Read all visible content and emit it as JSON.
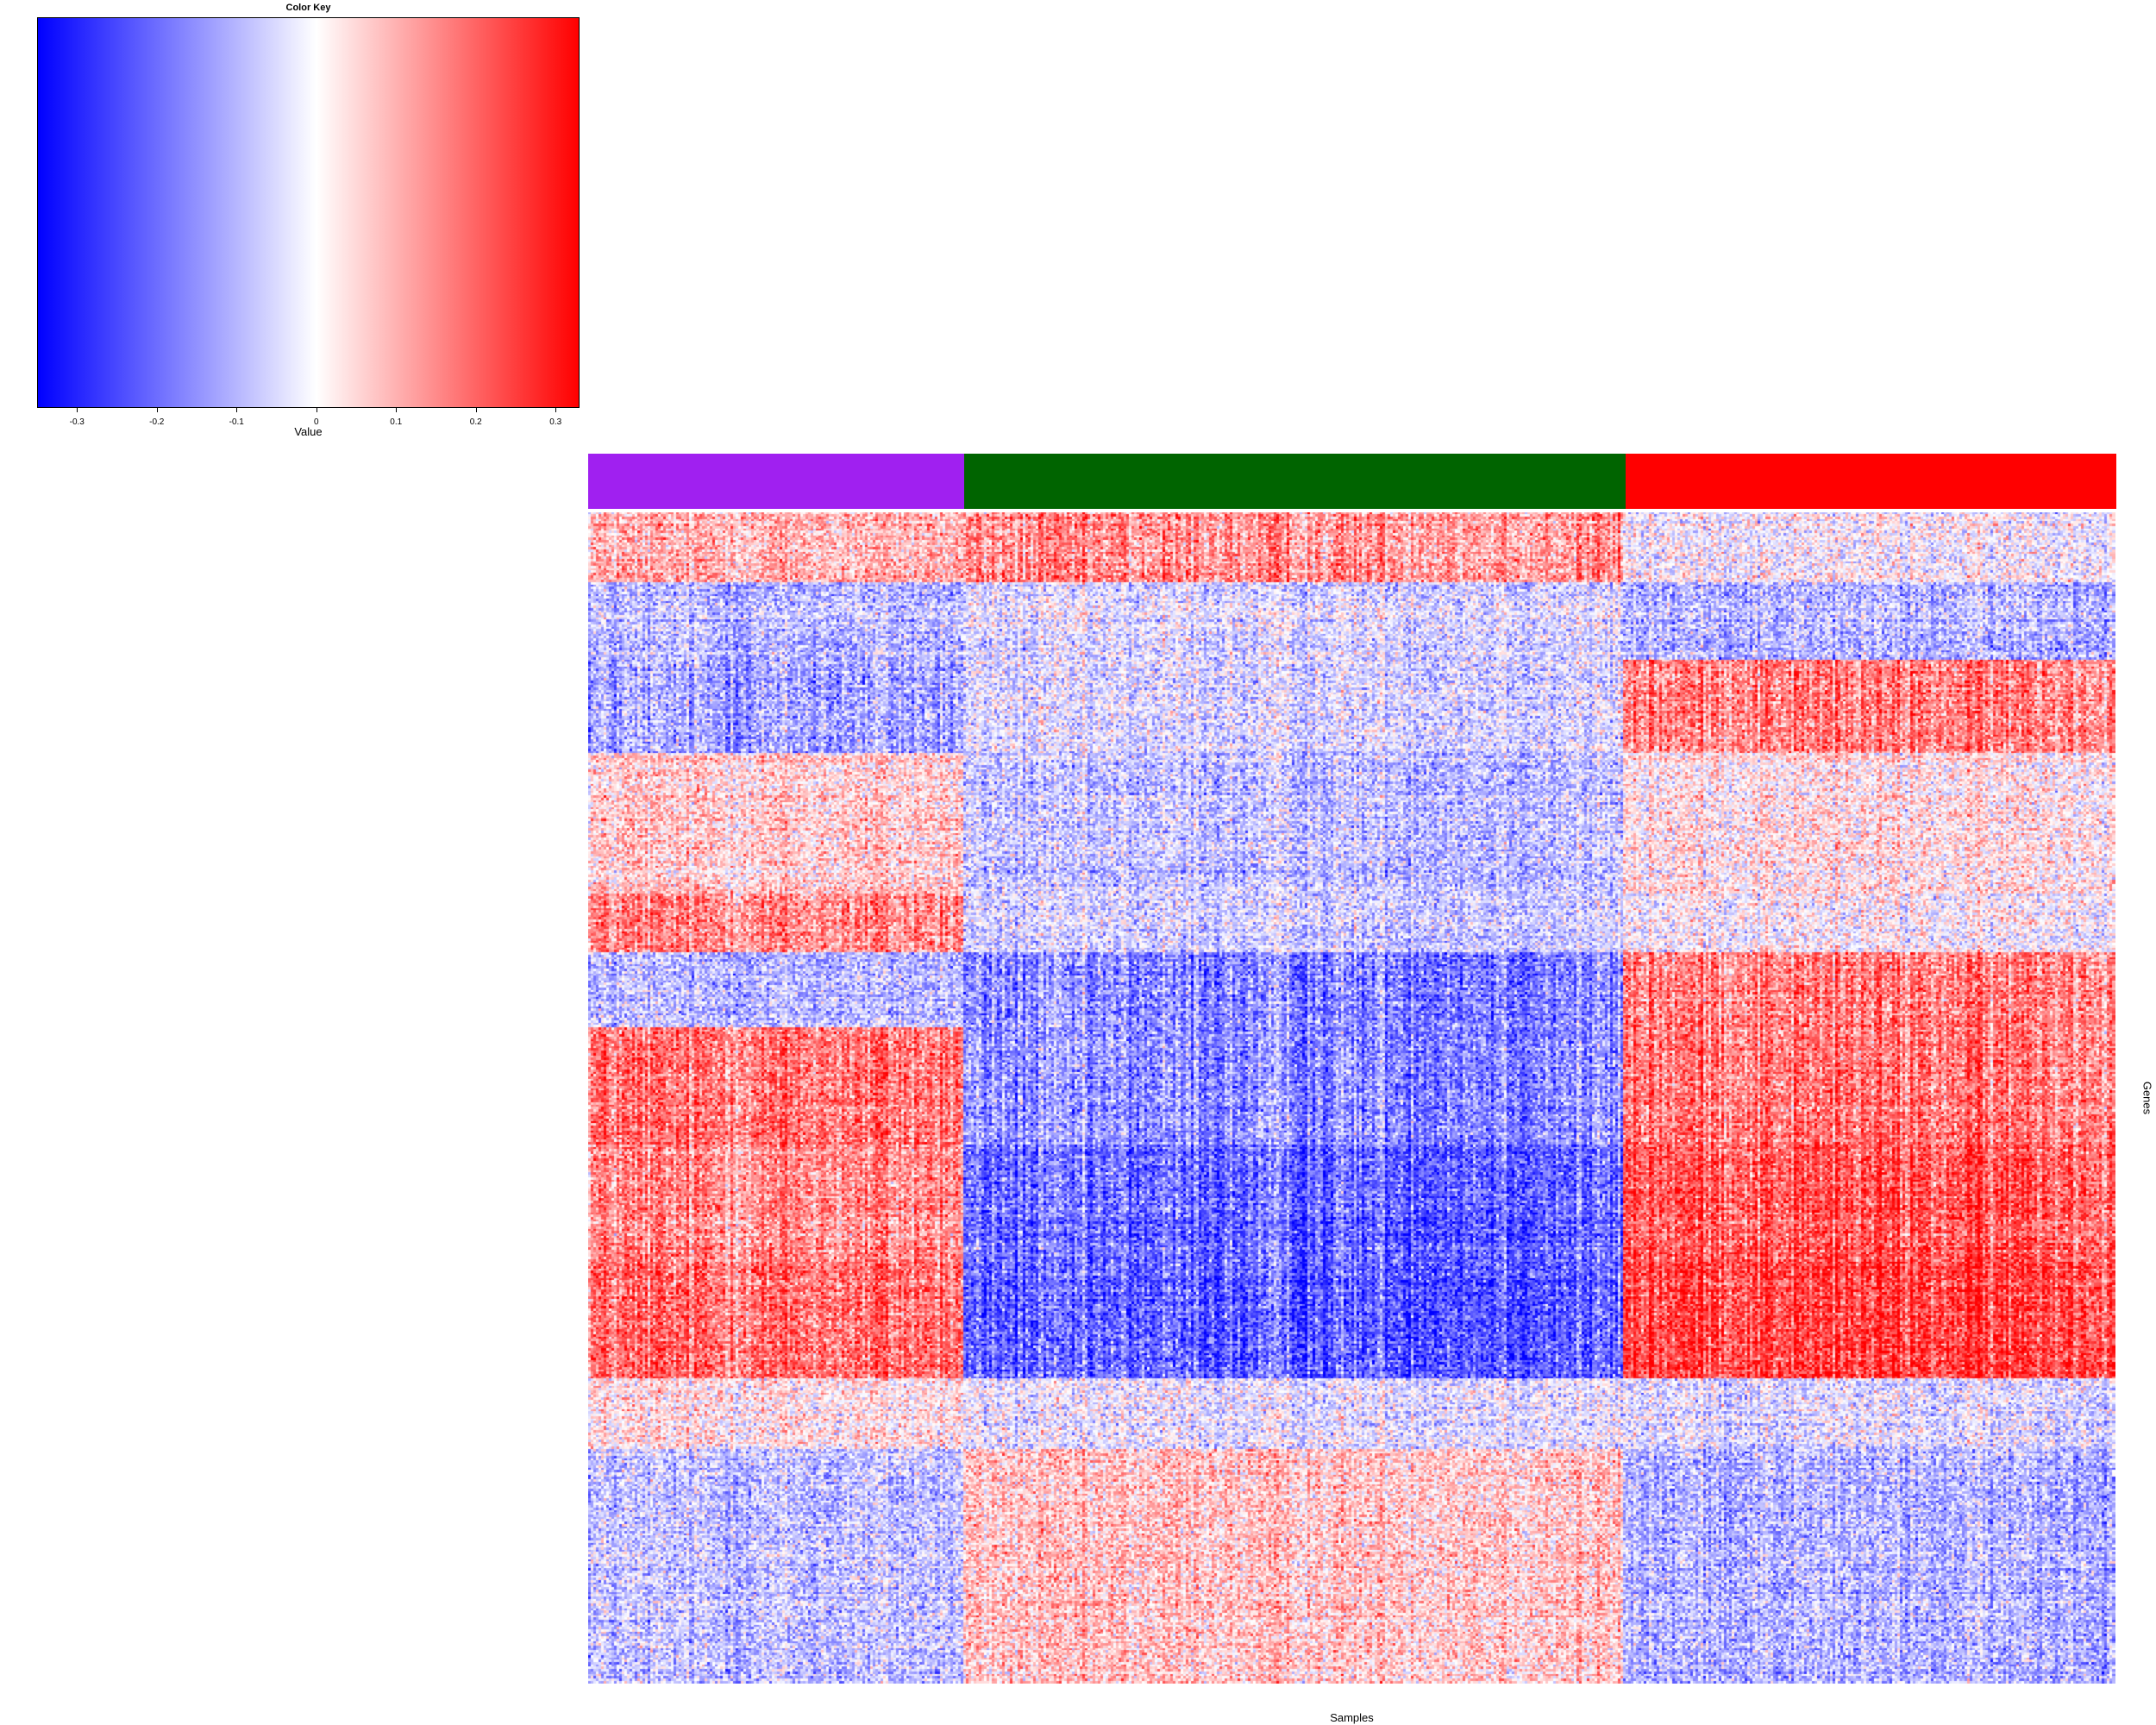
{
  "chart_data": {
    "type": "heatmap",
    "title": "",
    "xlabel": "Samples",
    "ylabel": "Genes",
    "color_key": {
      "title": "Color Key",
      "label": "Value",
      "range": [
        -0.35,
        0.33
      ],
      "ticks": [
        -0.3,
        -0.2,
        -0.1,
        0,
        0.1,
        0.2,
        0.3
      ],
      "tick_labels": [
        "-0.3",
        "-0.2",
        "-0.1",
        "0",
        "0.1",
        "0.2",
        "0.3"
      ],
      "colors": [
        "#0000ff",
        "#ffffff",
        "#ff0000"
      ]
    },
    "sample_groups": [
      {
        "color": "#a020f0",
        "fraction": 0.246
      },
      {
        "color": "#006400",
        "fraction": 0.433
      },
      {
        "color": "#ff0000",
        "fraction": 0.321
      }
    ],
    "gene_blocks": [
      {
        "rows": 0.06,
        "means": [
          0.1,
          0.14,
          0.0
        ]
      },
      {
        "rows": 0.065,
        "means": [
          -0.1,
          -0.05,
          -0.1
        ]
      },
      {
        "rows": 0.08,
        "means": [
          -0.12,
          -0.05,
          0.16
        ]
      },
      {
        "rows": 0.12,
        "means": [
          0.06,
          -0.08,
          0.03
        ]
      },
      {
        "rows": 0.05,
        "means": [
          0.15,
          -0.06,
          0.0
        ]
      },
      {
        "rows": 0.065,
        "means": [
          -0.1,
          -0.17,
          0.16
        ]
      },
      {
        "rows": 0.1,
        "means": [
          0.18,
          -0.15,
          0.18
        ]
      },
      {
        "rows": 0.1,
        "means": [
          0.15,
          -0.2,
          0.22
        ]
      },
      {
        "rows": 0.1,
        "means": [
          0.18,
          -0.22,
          0.24
        ]
      },
      {
        "rows": 0.06,
        "means": [
          0.03,
          -0.03,
          -0.04
        ]
      },
      {
        "rows": 0.2,
        "means": [
          -0.08,
          0.07,
          -0.1
        ]
      }
    ]
  }
}
